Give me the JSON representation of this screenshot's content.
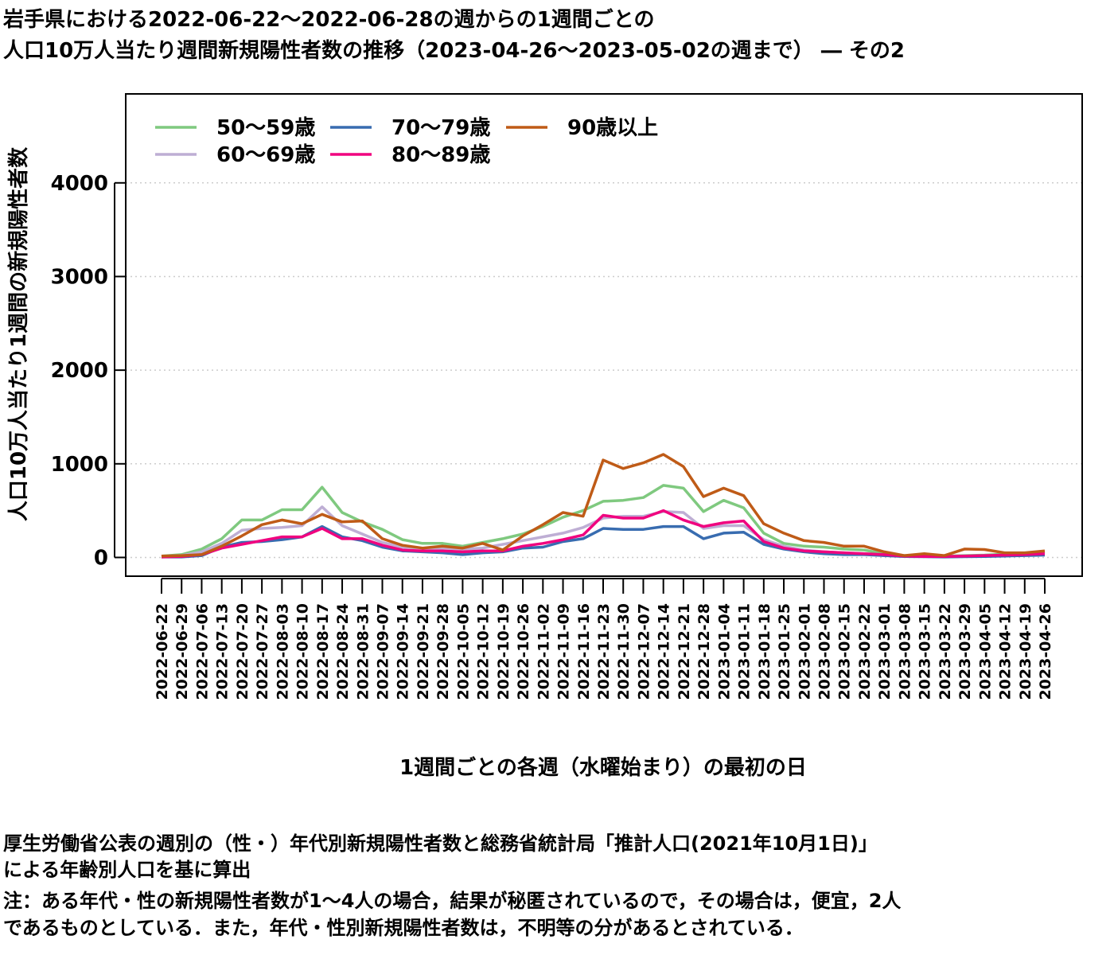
{
  "title": {
    "line1": "岩手県における2022-06-22〜2022-06-28の週からの1週間ごとの",
    "line2": "人口10万人当たり週間新規陽性者数の推移（2023-04-26〜2023-05-02の週まで） ― その2"
  },
  "notes": {
    "line1": "厚生労働省公表の週別の（性・）年代別新規陽性者数と総務省統計局「推計人口(2021年10月1日)」",
    "line2": "による年齢別人口を基に算出",
    "line3": "注：ある年代・性の新規陽性者数が1〜4人の場合，結果が秘匿されているので，その場合は，便宜，2人",
    "line4": "であるものとしている．また，年代・性別新規陽性者数は，不明等の分があるとされている．"
  },
  "chart_data": {
    "type": "line",
    "xlabel": "1週間ごとの各週（水曜始まり）の最初の日",
    "ylabel": "人口10万人当たり1週間の新規陽性者数",
    "ylim": [
      -200,
      4950
    ],
    "yticks": [
      0,
      1000,
      2000,
      3000,
      4000
    ],
    "grid": "horizontal dotted",
    "legend_position": "top-left",
    "categories": [
      "2022-06-22",
      "2022-06-29",
      "2022-07-06",
      "2022-07-13",
      "2022-07-20",
      "2022-07-27",
      "2022-08-03",
      "2022-08-10",
      "2022-08-17",
      "2022-08-24",
      "2022-08-31",
      "2022-09-07",
      "2022-09-14",
      "2022-09-21",
      "2022-09-28",
      "2022-10-05",
      "2022-10-12",
      "2022-10-19",
      "2022-10-26",
      "2022-11-02",
      "2022-11-09",
      "2022-11-16",
      "2022-11-23",
      "2022-11-30",
      "2022-12-07",
      "2022-12-14",
      "2022-12-21",
      "2022-12-28",
      "2023-01-04",
      "2023-01-11",
      "2023-01-18",
      "2023-01-25",
      "2023-02-01",
      "2023-02-08",
      "2023-02-15",
      "2023-02-22",
      "2023-03-01",
      "2023-03-08",
      "2023-03-15",
      "2023-03-22",
      "2023-03-29",
      "2023-04-05",
      "2023-04-12",
      "2023-04-19",
      "2023-04-26"
    ],
    "series": [
      {
        "name": "50〜59歳",
        "color": "#7fc97f",
        "values": [
          15,
          30,
          90,
          200,
          400,
          400,
          510,
          510,
          750,
          480,
          380,
          300,
          190,
          150,
          150,
          120,
          160,
          200,
          250,
          330,
          430,
          500,
          600,
          610,
          640,
          770,
          740,
          490,
          610,
          530,
          260,
          150,
          120,
          110,
          90,
          80,
          40,
          20,
          20,
          15,
          20,
          25,
          35,
          40,
          60
        ]
      },
      {
        "name": "60〜69歳",
        "color": "#beaed4",
        "values": [
          10,
          20,
          60,
          150,
          290,
          310,
          320,
          340,
          540,
          340,
          250,
          160,
          110,
          100,
          100,
          90,
          100,
          140,
          180,
          220,
          260,
          320,
          420,
          440,
          440,
          490,
          480,
          310,
          340,
          340,
          190,
          120,
          80,
          60,
          50,
          40,
          20,
          10,
          10,
          8,
          10,
          15,
          20,
          25,
          30
        ]
      },
      {
        "name": "70〜79歳",
        "color": "#386cb0",
        "values": [
          5,
          5,
          20,
          110,
          160,
          170,
          190,
          220,
          330,
          220,
          180,
          110,
          70,
          60,
          50,
          30,
          50,
          60,
          100,
          110,
          170,
          200,
          310,
          300,
          300,
          330,
          330,
          200,
          260,
          270,
          140,
          90,
          60,
          40,
          30,
          30,
          20,
          10,
          8,
          5,
          8,
          10,
          15,
          20,
          25
        ]
      },
      {
        "name": "80〜89歳",
        "color": "#f0027f",
        "values": [
          5,
          10,
          30,
          100,
          140,
          180,
          220,
          220,
          310,
          200,
          200,
          130,
          80,
          70,
          70,
          60,
          70,
          70,
          120,
          150,
          190,
          240,
          450,
          420,
          420,
          500,
          400,
          330,
          370,
          390,
          170,
          100,
          70,
          60,
          50,
          40,
          30,
          15,
          10,
          10,
          15,
          20,
          25,
          30,
          40
        ]
      },
      {
        "name": "90歳以上",
        "color": "#bf5b17",
        "values": [
          15,
          20,
          30,
          120,
          230,
          350,
          400,
          360,
          460,
          380,
          390,
          200,
          130,
          100,
          120,
          100,
          150,
          80,
          230,
          350,
          480,
          440,
          1040,
          950,
          1010,
          1100,
          970,
          650,
          740,
          660,
          360,
          260,
          180,
          160,
          120,
          120,
          60,
          20,
          40,
          20,
          90,
          85,
          50,
          50,
          70
        ]
      }
    ]
  }
}
